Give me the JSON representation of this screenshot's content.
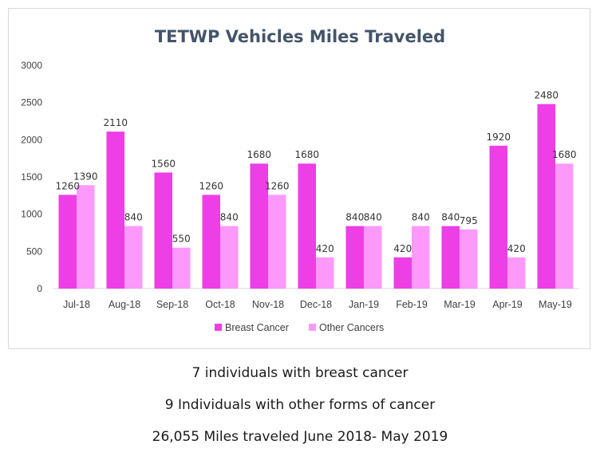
{
  "chart_data": {
    "type": "bar",
    "title": "TETWP Vehicles Miles Traveled",
    "xlabel": "",
    "ylabel": "",
    "ylim": [
      0,
      3000
    ],
    "yticks": [
      "0",
      "500",
      "1000",
      "1500",
      "2000",
      "2500",
      "3000"
    ],
    "grid": false,
    "legend_position": "bottom",
    "categories": [
      "Jul-18",
      "Aug-18",
      "Sep-18",
      "Oct-18",
      "Nov-18",
      "Dec-18",
      "Jan-19",
      "Feb-19",
      "Mar-19",
      "Apr-19",
      "May-19"
    ],
    "series": [
      {
        "name": "Breast Cancer",
        "color": "#ee3ee6",
        "values": [
          1260,
          2110,
          1560,
          1260,
          1680,
          1680,
          840,
          420,
          840,
          1920,
          2480
        ]
      },
      {
        "name": "Other Cancers",
        "color": "#fd99fb",
        "values": [
          1390,
          840,
          550,
          840,
          1260,
          420,
          840,
          840,
          795,
          420,
          1680
        ]
      }
    ]
  },
  "footer": {
    "line1": "7 individuals with breast cancer",
    "line2": "9 Individuals with other forms of cancer",
    "line3": "26,055 Miles traveled June 2018- May 2019"
  }
}
